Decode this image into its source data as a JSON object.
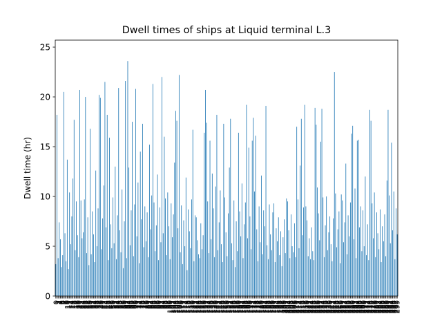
{
  "chart_data": {
    "type": "bar",
    "title": "Dwell times of ships at Liquid terminal L.3",
    "ylabel": "Dwell time (hr)",
    "color": "#1f77b4",
    "categories": [
      0,
      1,
      2,
      3,
      4,
      5,
      6,
      7,
      8,
      9,
      10,
      11,
      12,
      13,
      14,
      15,
      16,
      17,
      18,
      19,
      20,
      21,
      22,
      23,
      24,
      25,
      26,
      27,
      28,
      29,
      30,
      31,
      32,
      33,
      34,
      35,
      36,
      37,
      38,
      39,
      40,
      41,
      42,
      43,
      44,
      45,
      46,
      47,
      48,
      49,
      50,
      51,
      52,
      53,
      54,
      55,
      56,
      57,
      58,
      59,
      60,
      61,
      62,
      63,
      64,
      65,
      66,
      67,
      68,
      69,
      70,
      71,
      72,
      73,
      74,
      75,
      76,
      77,
      78,
      79,
      80,
      81,
      82,
      83,
      84,
      85,
      86,
      87,
      88,
      89,
      90,
      91,
      92,
      93,
      94,
      95,
      96,
      97,
      98,
      99,
      100,
      101,
      102,
      103,
      104,
      105,
      106,
      107,
      108,
      109,
      110,
      111,
      112,
      113,
      114,
      115,
      116,
      117,
      118,
      119,
      120,
      121,
      122,
      123,
      124,
      125,
      126,
      127,
      128,
      129,
      130,
      131,
      132,
      133,
      134,
      135,
      136,
      137,
      138,
      139,
      140,
      141,
      142,
      143,
      144,
      145,
      146,
      147,
      148,
      149,
      150,
      151,
      152,
      153,
      154,
      155,
      156,
      157,
      158,
      159,
      160,
      161,
      162,
      163,
      164,
      165,
      166,
      167,
      168,
      169,
      170,
      171,
      172,
      173,
      174,
      175,
      176,
      177,
      178,
      179,
      180,
      181,
      182,
      183,
      184,
      185,
      186,
      187,
      188,
      189,
      190,
      191,
      192,
      193,
      194,
      195,
      196,
      197,
      198,
      199,
      200,
      201,
      202,
      203,
      204,
      205,
      206,
      207,
      208,
      209,
      210,
      211,
      212,
      213,
      214,
      215,
      216,
      217,
      218,
      219,
      220,
      221,
      222,
      223,
      224,
      225,
      226,
      227,
      228,
      229,
      230,
      231,
      232,
      233,
      234,
      235,
      236,
      237,
      238,
      239,
      240,
      241,
      242,
      243,
      244,
      245,
      246,
      247,
      248,
      249,
      250,
      251,
      252,
      253,
      254,
      255,
      256,
      257,
      258,
      259,
      260,
      261,
      262,
      263,
      264,
      265,
      266,
      267,
      268,
      269,
      270,
      271,
      272,
      273,
      274,
      275,
      276,
      277,
      278,
      279,
      280,
      281,
      282,
      283,
      284,
      285,
      286,
      287,
      288,
      289,
      290,
      291,
      292,
      293,
      294,
      295,
      296,
      297,
      298,
      299
    ],
    "values": [
      3.2,
      18.2,
      3.8,
      7.4,
      5.7,
      2.9,
      4.1,
      20.5,
      6.3,
      3.5,
      13.7,
      2.7,
      10.4,
      5.2,
      8.0,
      11.8,
      17.7,
      4.6,
      9.5,
      6.1,
      3.9,
      20.7,
      9.6,
      5.8,
      6.4,
      9.7,
      20.0,
      4.3,
      7.9,
      3.1,
      16.8,
      4.2,
      8.5,
      6.2,
      3.4,
      12.6,
      5.0,
      8.8,
      20.2,
      19.9,
      4.7,
      7.8,
      11.1,
      21.5,
      6.9,
      18.2,
      3.6,
      15.9,
      7.2,
      4.8,
      9.9,
      5.3,
      13.0,
      3.7,
      8.1,
      20.9,
      6.6,
      4.4,
      10.7,
      2.8,
      7.5,
      21.6,
      3.8,
      23.6,
      12.9,
      5.1,
      8.6,
      17.5,
      4.0,
      9.2,
      20.8,
      6.0,
      11.4,
      3.3,
      14.5,
      7.7,
      17.3,
      4.9,
      9.0,
      5.5,
      8.4,
      3.9,
      15.2,
      6.7,
      10.1,
      21.3,
      9.4,
      4.5,
      7.1,
      12.2,
      3.6,
      8.9,
      5.4,
      22.0,
      6.3,
      16.0,
      9.8,
      4.1,
      10.4,
      7.0,
      3.7,
      9.3,
      5.9,
      8.2,
      13.4,
      18.6,
      17.6,
      6.8,
      22.2,
      4.4,
      9.1,
      3.2,
      7.6,
      5.0,
      11.9,
      2.6,
      8.7,
      6.5,
      4.8,
      9.7,
      16.7,
      3.5,
      8.1,
      7.9,
      5.6,
      4.2,
      3.8,
      7.3,
      4.7,
      6.1,
      16.4,
      20.7,
      17.4,
      9.5,
      4.3,
      15.6,
      5.7,
      12.3,
      8.8,
      3.9,
      11.0,
      18.2,
      4.6,
      7.4,
      10.6,
      5.2,
      3.4,
      17.3,
      9.9,
      6.4,
      4.0,
      8.3,
      12.9,
      17.8,
      5.3,
      3.6,
      9.6,
      2.9,
      7.5,
      4.5,
      16.4,
      8.5,
      6.0,
      11.3,
      3.8,
      7.2,
      9.4,
      19.2,
      5.8,
      14.9,
      8.0,
      4.7,
      15.6,
      17.9,
      10.5,
      16.1,
      6.7,
      3.5,
      9.0,
      5.4,
      12.1,
      4.2,
      8.6,
      7.0,
      19.1,
      5.1,
      3.7,
      9.2,
      6.2,
      4.6,
      8.4,
      9.3,
      3.4,
      6.8,
      5.5,
      7.9,
      4.1,
      6.5,
      3.0,
      5.9,
      7.7,
      4.3,
      9.8,
      9.5,
      6.6,
      3.8,
      8.2,
      5.0,
      4.4,
      7.3,
      3.9,
      17.0,
      9.7,
      4.8,
      13.1,
      17.8,
      6.1,
      8.9,
      19.2,
      9.0,
      7.6,
      4.0,
      5.8,
      3.7,
      6.9,
      4.5,
      3.6,
      18.9,
      17.2,
      10.9,
      8.3,
      5.6,
      15.5,
      18.8,
      9.9,
      3.9,
      7.1,
      10.0,
      4.6,
      6.4,
      8.0,
      5.2,
      3.5,
      7.8,
      22.5,
      10.3,
      4.9,
      6.7,
      8.5,
      3.3,
      10.2,
      9.6,
      5.4,
      7.4,
      13.3,
      4.2,
      8.1,
      6.0,
      9.4,
      16.3,
      17.1,
      5.7,
      10.8,
      3.8,
      15.6,
      15.7,
      6.9,
      9.0,
      4.5,
      8.6,
      5.0,
      12.0,
      4.1,
      7.2,
      3.6,
      18.7,
      17.6,
      9.3,
      5.8,
      10.4,
      3.9,
      8.4,
      6.3,
      4.7,
      8.7,
      3.4,
      7.0,
      5.5,
      8.2,
      4.0,
      11.6,
      18.7,
      10.1,
      5.3,
      15.4,
      6.6,
      10.5,
      3.7,
      8.8,
      6.2
    ],
    "ylim": [
      0,
      25.7
    ],
    "yticks": [
      0,
      5,
      10,
      15,
      20,
      25
    ]
  }
}
